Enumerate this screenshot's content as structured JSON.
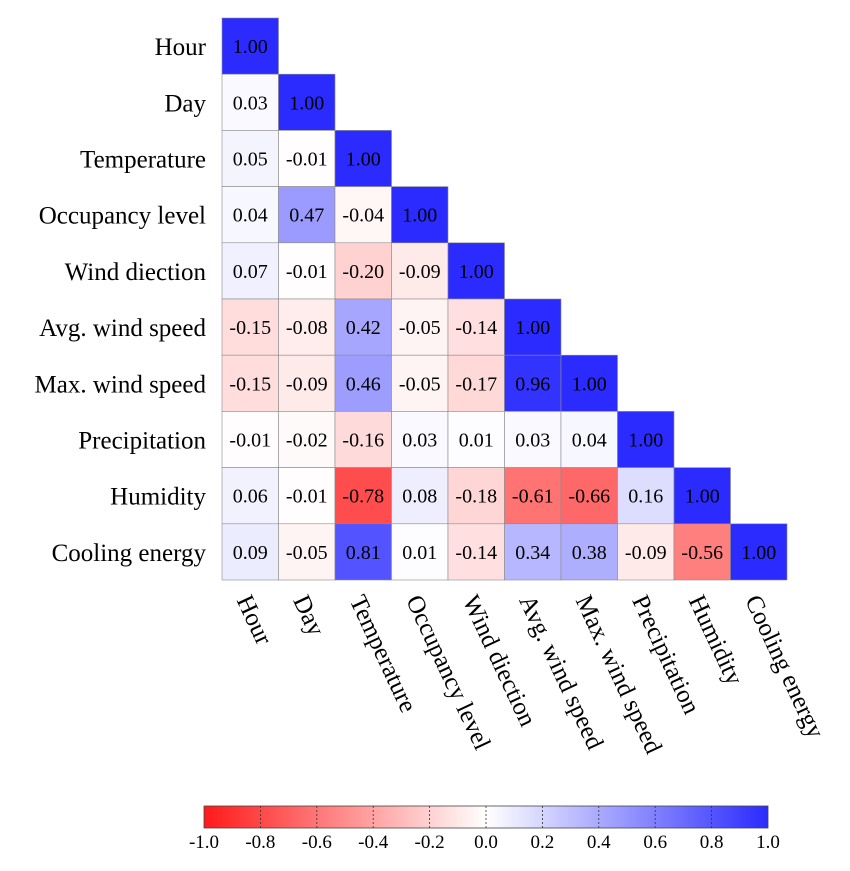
{
  "chart_data": {
    "type": "heatmap",
    "variables": [
      "Hour",
      "Day",
      "Temperature",
      "Occupancy level",
      "Wind diection",
      "Avg. wind speed",
      "Max. wind speed",
      "Precipitation",
      "Humidity",
      "Cooling energy"
    ],
    "matrix": [
      [
        1.0
      ],
      [
        0.03,
        1.0
      ],
      [
        0.05,
        -0.01,
        1.0
      ],
      [
        0.04,
        0.47,
        -0.04,
        1.0
      ],
      [
        0.07,
        -0.01,
        -0.2,
        -0.09,
        1.0
      ],
      [
        -0.15,
        -0.08,
        0.42,
        -0.05,
        -0.14,
        1.0
      ],
      [
        -0.15,
        -0.09,
        0.46,
        -0.05,
        -0.17,
        0.96,
        1.0
      ],
      [
        -0.01,
        -0.02,
        -0.16,
        0.03,
        0.01,
        0.03,
        0.04,
        1.0
      ],
      [
        0.06,
        -0.01,
        -0.78,
        0.08,
        -0.18,
        -0.61,
        -0.66,
        0.16,
        1.0
      ],
      [
        0.09,
        -0.05,
        0.81,
        0.01,
        -0.14,
        0.34,
        0.38,
        -0.09,
        -0.56,
        1.0
      ]
    ],
    "triangle": "lower",
    "colorscale": {
      "min": -1.0,
      "max": 1.0,
      "low_color": "#ff1a1a",
      "mid_color": "#ffffff",
      "high_color": "#2b2bff",
      "ticks": [
        "-1.0",
        "-0.8",
        "-0.6",
        "-0.4",
        "-0.2",
        "0.0",
        "0.2",
        "0.4",
        "0.6",
        "0.8",
        "1.0"
      ]
    },
    "colorbar_placement": "bottom",
    "title": "",
    "xlabel": "",
    "ylabel": ""
  }
}
